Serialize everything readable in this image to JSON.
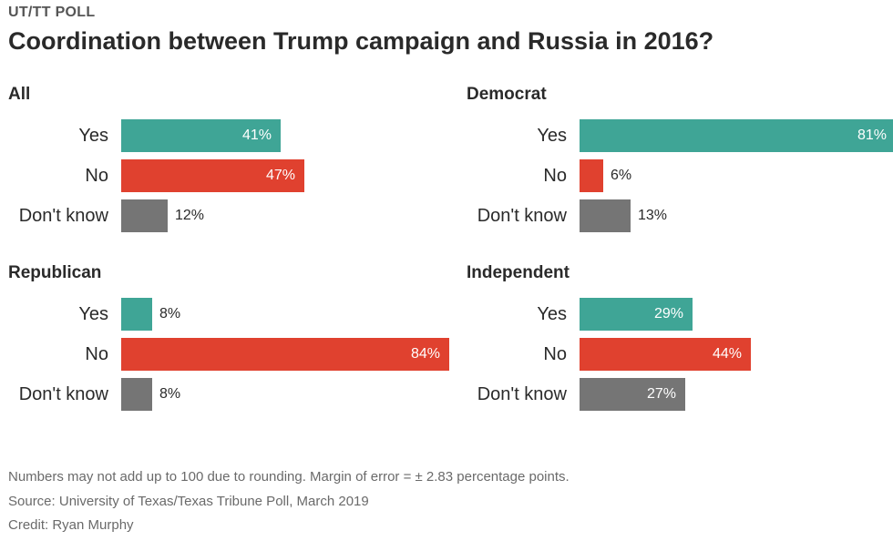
{
  "kicker": "UT/TT POLL",
  "title": "Coordination between Trump campaign and Russia in 2016?",
  "colors": {
    "Yes": "#3fa596",
    "No": "#e0412f",
    "Don't know": "#757575"
  },
  "chart_data": [
    {
      "type": "bar",
      "title": "All",
      "categories": [
        "Yes",
        "No",
        "Don't know"
      ],
      "values": [
        41,
        47,
        12
      ],
      "value_labels": [
        "41%",
        "47%",
        "12%"
      ],
      "unit": "%",
      "xlim": [
        0,
        100
      ]
    },
    {
      "type": "bar",
      "title": "Democrat",
      "categories": [
        "Yes",
        "No",
        "Don't know"
      ],
      "values": [
        81,
        6,
        13
      ],
      "value_labels": [
        "81%",
        "6%",
        "13%"
      ],
      "unit": "%",
      "xlim": [
        0,
        100
      ]
    },
    {
      "type": "bar",
      "title": "Republican",
      "categories": [
        "Yes",
        "No",
        "Don't know"
      ],
      "values": [
        8,
        84,
        8
      ],
      "value_labels": [
        "8%",
        "84%",
        "8%"
      ],
      "unit": "%",
      "xlim": [
        0,
        100
      ]
    },
    {
      "type": "bar",
      "title": "Independent",
      "categories": [
        "Yes",
        "No",
        "Don't know"
      ],
      "values": [
        29,
        44,
        27
      ],
      "value_labels": [
        "29%",
        "44%",
        "27%"
      ],
      "unit": "%",
      "xlim": [
        0,
        100
      ]
    }
  ],
  "footer": {
    "note": "Numbers may not add up to 100 due to rounding. Margin of error = ± 2.83 percentage points.",
    "source": "Source: University of Texas/Texas Tribune Poll, March 2019",
    "credit": "Credit: Ryan Murphy"
  }
}
